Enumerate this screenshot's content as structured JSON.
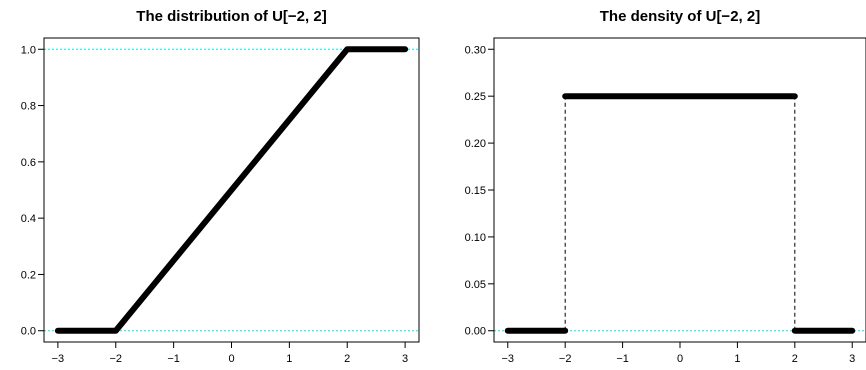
{
  "chart_data": [
    {
      "type": "line",
      "title": "The distribution of U[−2, 2]",
      "xlabel": "",
      "ylabel": "",
      "xlim": [
        -3,
        3
      ],
      "ylim": [
        0,
        1
      ],
      "xticks": [
        -3,
        -2,
        -1,
        0,
        1,
        2,
        3
      ],
      "xtick_labels": [
        "−3",
        "−2",
        "−1",
        "0",
        "1",
        "2",
        "3"
      ],
      "yticks": [
        0,
        0.2,
        0.4,
        0.6,
        0.8,
        1.0
      ],
      "ytick_labels": [
        "0.0",
        "0.2",
        "0.4",
        "0.6",
        "0.8",
        "1.0"
      ],
      "reference_lines": [
        0,
        1
      ],
      "reference_line_color": "#00e5ee",
      "series_color": "#000000",
      "series": [
        {
          "x": [
            -3,
            -2,
            2,
            3
          ],
          "y": [
            0,
            0,
            1,
            1
          ]
        }
      ],
      "grid": false,
      "legend": "none"
    },
    {
      "type": "line",
      "title": "The density of U[−2, 2]",
      "xlabel": "",
      "ylabel": "",
      "xlim": [
        -3,
        3
      ],
      "ylim": [
        0,
        0.3
      ],
      "xticks": [
        -3,
        -2,
        -1,
        0,
        1,
        2,
        3
      ],
      "xtick_labels": [
        "−3",
        "−2",
        "−1",
        "0",
        "1",
        "2",
        "3"
      ],
      "yticks": [
        0,
        0.05,
        0.1,
        0.15,
        0.2,
        0.25,
        0.3
      ],
      "ytick_labels": [
        "0.00",
        "0.05",
        "0.10",
        "0.15",
        "0.20",
        "0.25",
        "0.30"
      ],
      "reference_lines": [
        0
      ],
      "reference_line_color": "#00e5ee",
      "series_color": "#000000",
      "segments": [
        {
          "x": [
            -3,
            -2
          ],
          "y": [
            0,
            0
          ]
        },
        {
          "x": [
            -2,
            2
          ],
          "y": [
            0.25,
            0.25
          ]
        },
        {
          "x": [
            2,
            3
          ],
          "y": [
            0,
            0
          ]
        }
      ],
      "dashed_verticals": [
        {
          "x": -2,
          "y": [
            0,
            0.25
          ]
        },
        {
          "x": 2,
          "y": [
            0,
            0.25
          ]
        }
      ],
      "grid": false,
      "legend": "none"
    }
  ]
}
